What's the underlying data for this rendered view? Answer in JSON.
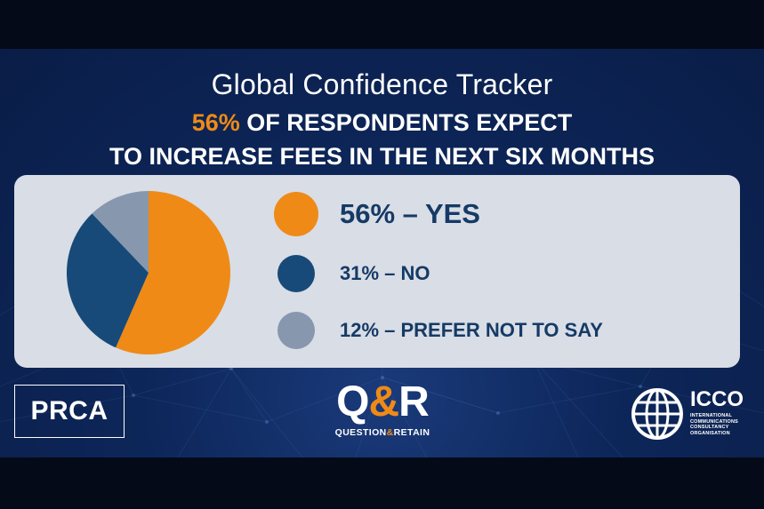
{
  "slide": {
    "title": "Global Confidence Tracker",
    "headline_accent": "56%",
    "headline_line1_rest": " OF RESPONDENTS EXPECT",
    "headline_line2": "TO INCREASE FEES IN THE NEXT SIX MONTHS"
  },
  "colors": {
    "yes": "#ef8a17",
    "no": "#174a78",
    "prefer_not": "#8797ae",
    "background": "#0d2659",
    "panel": "#d9dde5",
    "legend_text": "#153a66"
  },
  "legend": [
    {
      "label": "56% – YES"
    },
    {
      "label": "31% – NO"
    },
    {
      "label": "12% – PREFER NOT TO SAY"
    }
  ],
  "chart_data": {
    "type": "pie",
    "title": "Global Confidence Tracker",
    "categories": [
      "YES",
      "NO",
      "PREFER NOT TO SAY"
    ],
    "values": [
      56,
      31,
      12
    ],
    "unit": "%",
    "start_angle_deg": 0,
    "direction": "clockwise",
    "legend_placement": "right"
  },
  "logos": {
    "prca": "PRCA",
    "qr_q": "Q",
    "qr_amp": "&",
    "qr_r": "R",
    "qr_sub_left": "QUESTION",
    "qr_sub_amp": "&",
    "qr_sub_right": "RETAIN",
    "icco_name": "ICCO",
    "icco_sub": "INTERNATIONAL COMMUNICATIONS CONSULTANCY ORGANISATION"
  }
}
